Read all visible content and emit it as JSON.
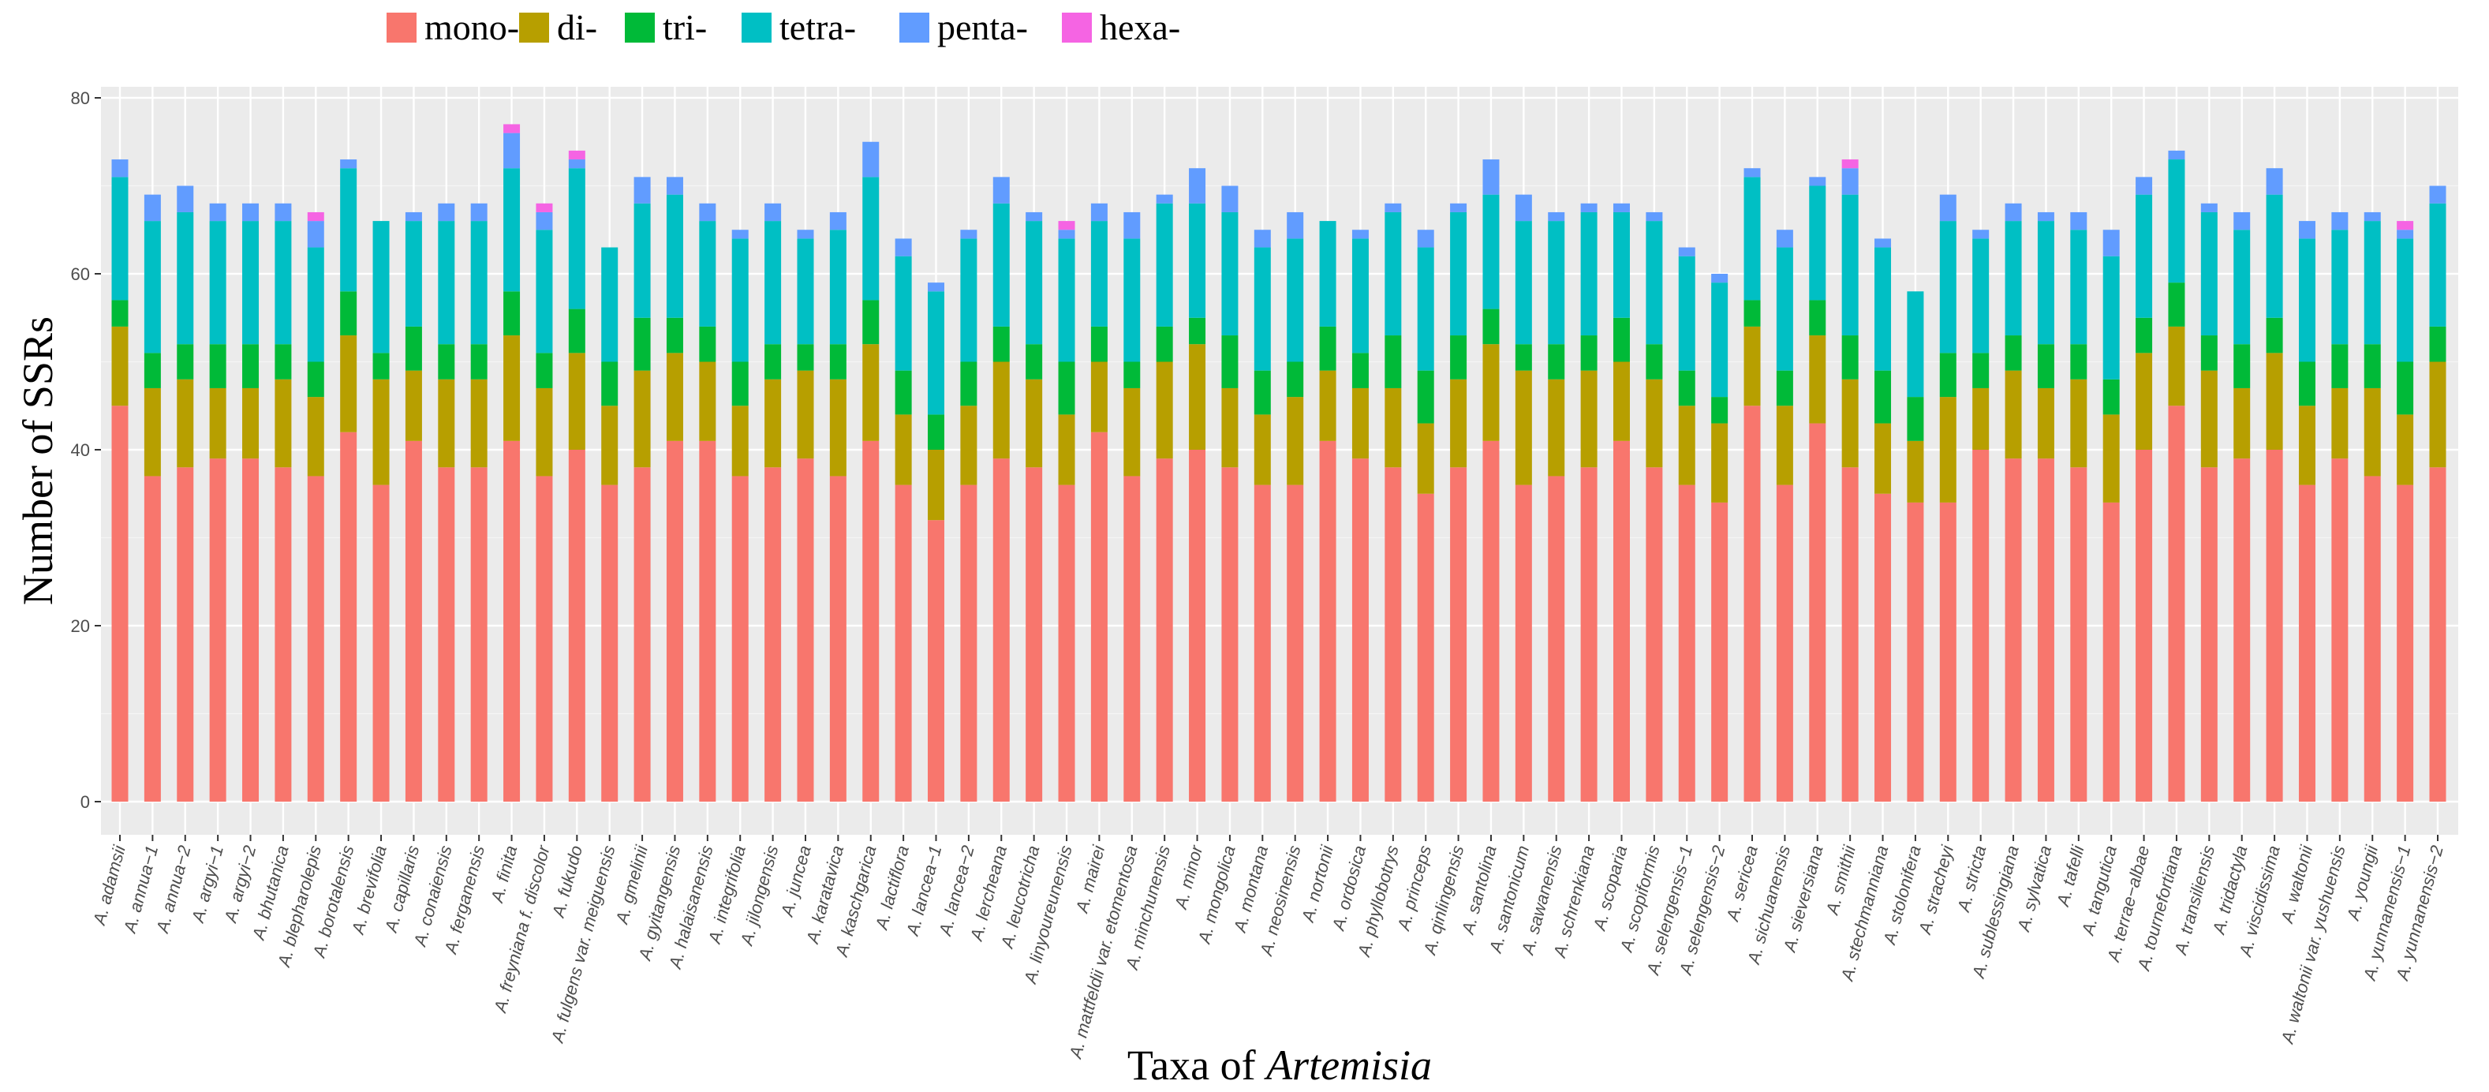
{
  "chart_data": {
    "type": "bar",
    "stacked": true,
    "title": "",
    "xlabel": "Taxa of ",
    "xlabel_italic": "Artemisia",
    "ylabel": "Number of SSRs",
    "ylim": [
      0,
      80
    ],
    "yticks": [
      0,
      20,
      40,
      60,
      80
    ],
    "grid": true,
    "legend_position": "top",
    "categories": [
      "A. adamsii",
      "A. annua−1",
      "A. annua−2",
      "A. argyi−1",
      "A. argyi−2",
      "A. bhutanica",
      "A. blepharolepis",
      "A. borotalensis",
      "A. brevifolia",
      "A. capillaris",
      "A. conaiensis",
      "A. ferganensis",
      "A. finita",
      "A. freyniana f. discolor",
      "A. fukudo",
      "A. fulgens var. meiguensis",
      "A. gmelinii",
      "A. gyitangensis",
      "A. halaisanensis",
      "A. integrifolia",
      "A. jilongensis",
      "A. juncea",
      "A. karatavica",
      "A. kaschgarica",
      "A. lactiflora",
      "A. lancea−1",
      "A. lancea−2",
      "A. lercheana",
      "A. leucotricha",
      "A. linyoureunensis",
      "A. mairei",
      "A. mattfeldii var. etomentosa",
      "A. minchunensis",
      "A. minor",
      "A. mongolica",
      "A. montana",
      "A. neosinensis",
      "A. nortonii",
      "A. ordosica",
      "A. phyllobotrys",
      "A. princeps",
      "A. qinlingensis",
      "A. santolina",
      "A. santonicum",
      "A. sawanensis",
      "A. schrenkiana",
      "A. scoparia",
      "A. scopiformis",
      "A. selengensis−1",
      "A. selengensis−2",
      "A. sericea",
      "A. sichuanensis",
      "A. sieversiana",
      "A. smithii",
      "A. stechmanniana",
      "A. stolonifera",
      "A. stracheyi",
      "A. stricta",
      "A. sublessingiana",
      "A. sylvatica",
      "A. tafelli",
      "A. tangutica",
      "A. terrae−albae",
      "A. tournefortiana",
      "A. transiliensis",
      "A. tridactyla",
      "A. viscidissima",
      "A. waltonii",
      "A. waltonii var. yushuensis",
      "A. youngii",
      "A. yunnanensis−1",
      "A. yunnanensis−2"
    ],
    "series": [
      {
        "name": "mono-",
        "color": "#F8766D",
        "values": [
          45,
          37,
          38,
          39,
          39,
          38,
          37,
          42,
          36,
          41,
          38,
          38,
          41,
          37,
          40,
          36,
          38,
          41,
          41,
          37,
          38,
          39,
          37,
          41,
          36,
          32,
          36,
          39,
          38,
          36,
          42,
          37,
          39,
          40,
          38,
          36,
          36,
          41,
          39,
          38,
          35,
          38,
          41,
          36,
          37,
          38,
          41,
          38,
          36,
          34,
          45,
          36,
          43,
          38,
          35,
          34,
          34,
          40,
          39,
          39,
          38,
          34,
          40,
          45,
          38,
          39,
          40,
          36,
          39,
          37,
          36,
          38
        ]
      },
      {
        "name": "di-",
        "color": "#B79F00",
        "values": [
          9,
          10,
          10,
          8,
          8,
          10,
          9,
          11,
          12,
          8,
          10,
          10,
          12,
          10,
          11,
          9,
          11,
          10,
          9,
          8,
          10,
          10,
          11,
          11,
          8,
          8,
          9,
          11,
          10,
          8,
          8,
          10,
          11,
          12,
          9,
          8,
          10,
          8,
          8,
          9,
          8,
          10,
          11,
          13,
          11,
          11,
          9,
          10,
          9,
          9,
          9,
          9,
          10,
          10,
          8,
          7,
          12,
          7,
          10,
          8,
          10,
          10,
          11,
          9,
          11,
          8,
          11,
          9,
          8,
          10,
          8,
          12
        ]
      },
      {
        "name": "tri-",
        "color": "#00BA38",
        "values": [
          3,
          4,
          4,
          5,
          5,
          4,
          4,
          5,
          3,
          5,
          4,
          4,
          5,
          4,
          5,
          5,
          6,
          4,
          4,
          5,
          4,
          3,
          4,
          5,
          5,
          4,
          5,
          4,
          4,
          6,
          4,
          3,
          4,
          3,
          6,
          5,
          4,
          5,
          4,
          6,
          6,
          5,
          4,
          3,
          4,
          4,
          5,
          4,
          4,
          3,
          3,
          4,
          4,
          5,
          6,
          5,
          5,
          4,
          4,
          5,
          4,
          4,
          4,
          5,
          4,
          5,
          4,
          5,
          5,
          5,
          6,
          4
        ]
      },
      {
        "name": "tetra-",
        "color": "#00BFC4",
        "values": [
          14,
          15,
          15,
          14,
          14,
          14,
          13,
          14,
          15,
          12,
          14,
          14,
          14,
          14,
          16,
          13,
          13,
          14,
          12,
          14,
          14,
          12,
          13,
          14,
          13,
          14,
          14,
          14,
          14,
          14,
          12,
          14,
          14,
          13,
          14,
          14,
          14,
          12,
          13,
          14,
          14,
          14,
          13,
          14,
          14,
          14,
          12,
          14,
          13,
          13,
          14,
          14,
          13,
          16,
          14,
          12,
          15,
          13,
          13,
          14,
          13,
          14,
          14,
          14,
          14,
          13,
          14,
          14,
          13,
          14,
          14,
          14
        ]
      },
      {
        "name": "penta-",
        "color": "#619CFF",
        "values": [
          2,
          3,
          3,
          2,
          2,
          2,
          3,
          1,
          0,
          1,
          2,
          2,
          4,
          2,
          1,
          0,
          3,
          2,
          2,
          1,
          2,
          1,
          2,
          4,
          2,
          1,
          1,
          3,
          1,
          1,
          2,
          3,
          1,
          4,
          3,
          2,
          3,
          0,
          1,
          1,
          2,
          1,
          4,
          3,
          1,
          1,
          1,
          1,
          1,
          1,
          1,
          2,
          1,
          3,
          1,
          0,
          3,
          1,
          2,
          1,
          2,
          3,
          2,
          1,
          1,
          2,
          3,
          2,
          2,
          1,
          1,
          2
        ]
      },
      {
        "name": "hexa-",
        "color": "#F564E3",
        "values": [
          0,
          0,
          0,
          0,
          0,
          0,
          1,
          0,
          0,
          0,
          0,
          0,
          1,
          1,
          1,
          0,
          0,
          0,
          0,
          0,
          0,
          0,
          0,
          0,
          0,
          0,
          0,
          0,
          0,
          1,
          0,
          0,
          0,
          0,
          0,
          0,
          0,
          0,
          0,
          0,
          0,
          0,
          0,
          0,
          0,
          0,
          0,
          0,
          0,
          0,
          0,
          0,
          0,
          1,
          0,
          0,
          0,
          0,
          0,
          0,
          0,
          0,
          0,
          0,
          0,
          0,
          0,
          0,
          0,
          0,
          1,
          0
        ]
      }
    ]
  }
}
